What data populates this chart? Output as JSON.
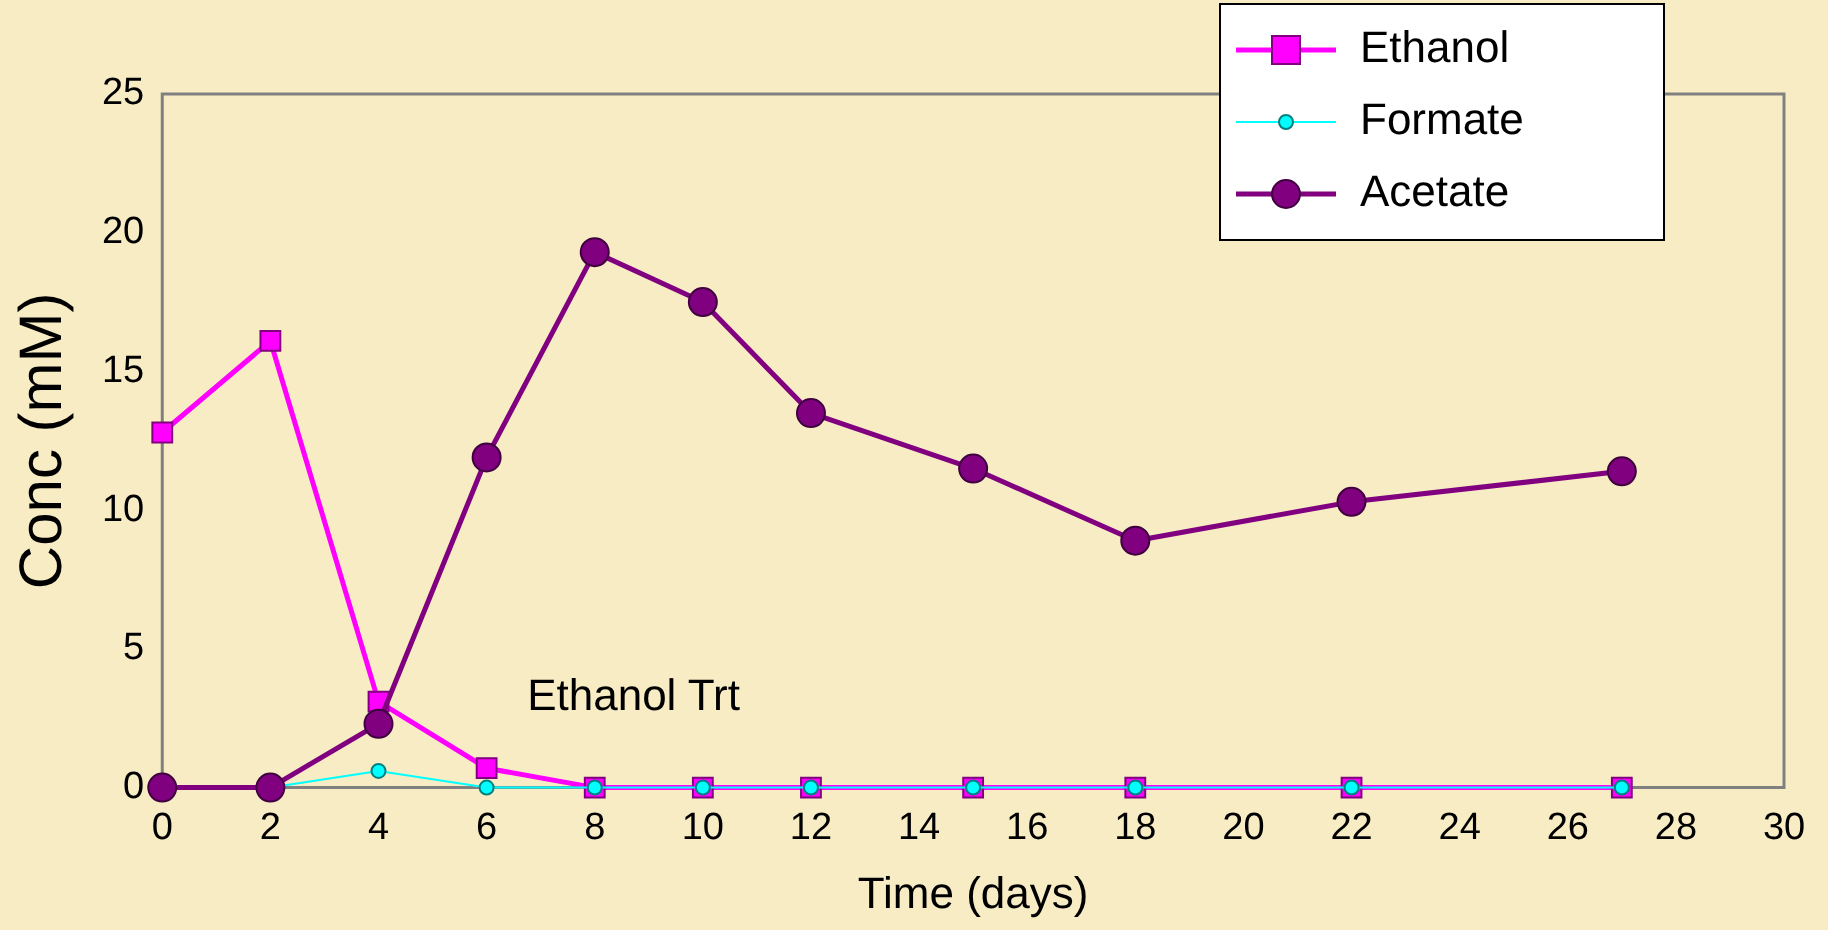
{
  "chart_data": {
    "type": "line",
    "xlabel": "Time (days)",
    "ylabel": "Conc (mM)",
    "annotations": [
      "Ethanol Trt"
    ],
    "xlim": [
      0,
      30
    ],
    "xticks": [
      0,
      2,
      4,
      6,
      8,
      10,
      12,
      14,
      16,
      18,
      20,
      22,
      24,
      26,
      28,
      30
    ],
    "ylim": [
      0,
      25
    ],
    "yticks": [
      0,
      5,
      10,
      15,
      20,
      25
    ],
    "grid": false,
    "legend": "top right",
    "line_style": "solid",
    "x": [
      0,
      2,
      4,
      6,
      8,
      10,
      12,
      15,
      18,
      22,
      27
    ],
    "series": [
      {
        "name": "Ethanol",
        "color": "#ff00ff",
        "marker": "square",
        "values": [
          12.8,
          16.1,
          3.1,
          0.7,
          0,
          0,
          0,
          0,
          0,
          0,
          0
        ]
      },
      {
        "name": "Formate",
        "color": "#00ffff",
        "marker": "circle",
        "values": [
          0,
          0,
          0.6,
          0,
          0,
          0,
          0,
          0,
          0,
          0,
          0
        ]
      },
      {
        "name": "Acetate",
        "color": "#800080",
        "marker": "circle",
        "values": [
          0,
          0,
          2.3,
          11.9,
          19.3,
          17.5,
          13.5,
          11.5,
          8.9,
          10.3,
          11.4
        ]
      }
    ]
  }
}
